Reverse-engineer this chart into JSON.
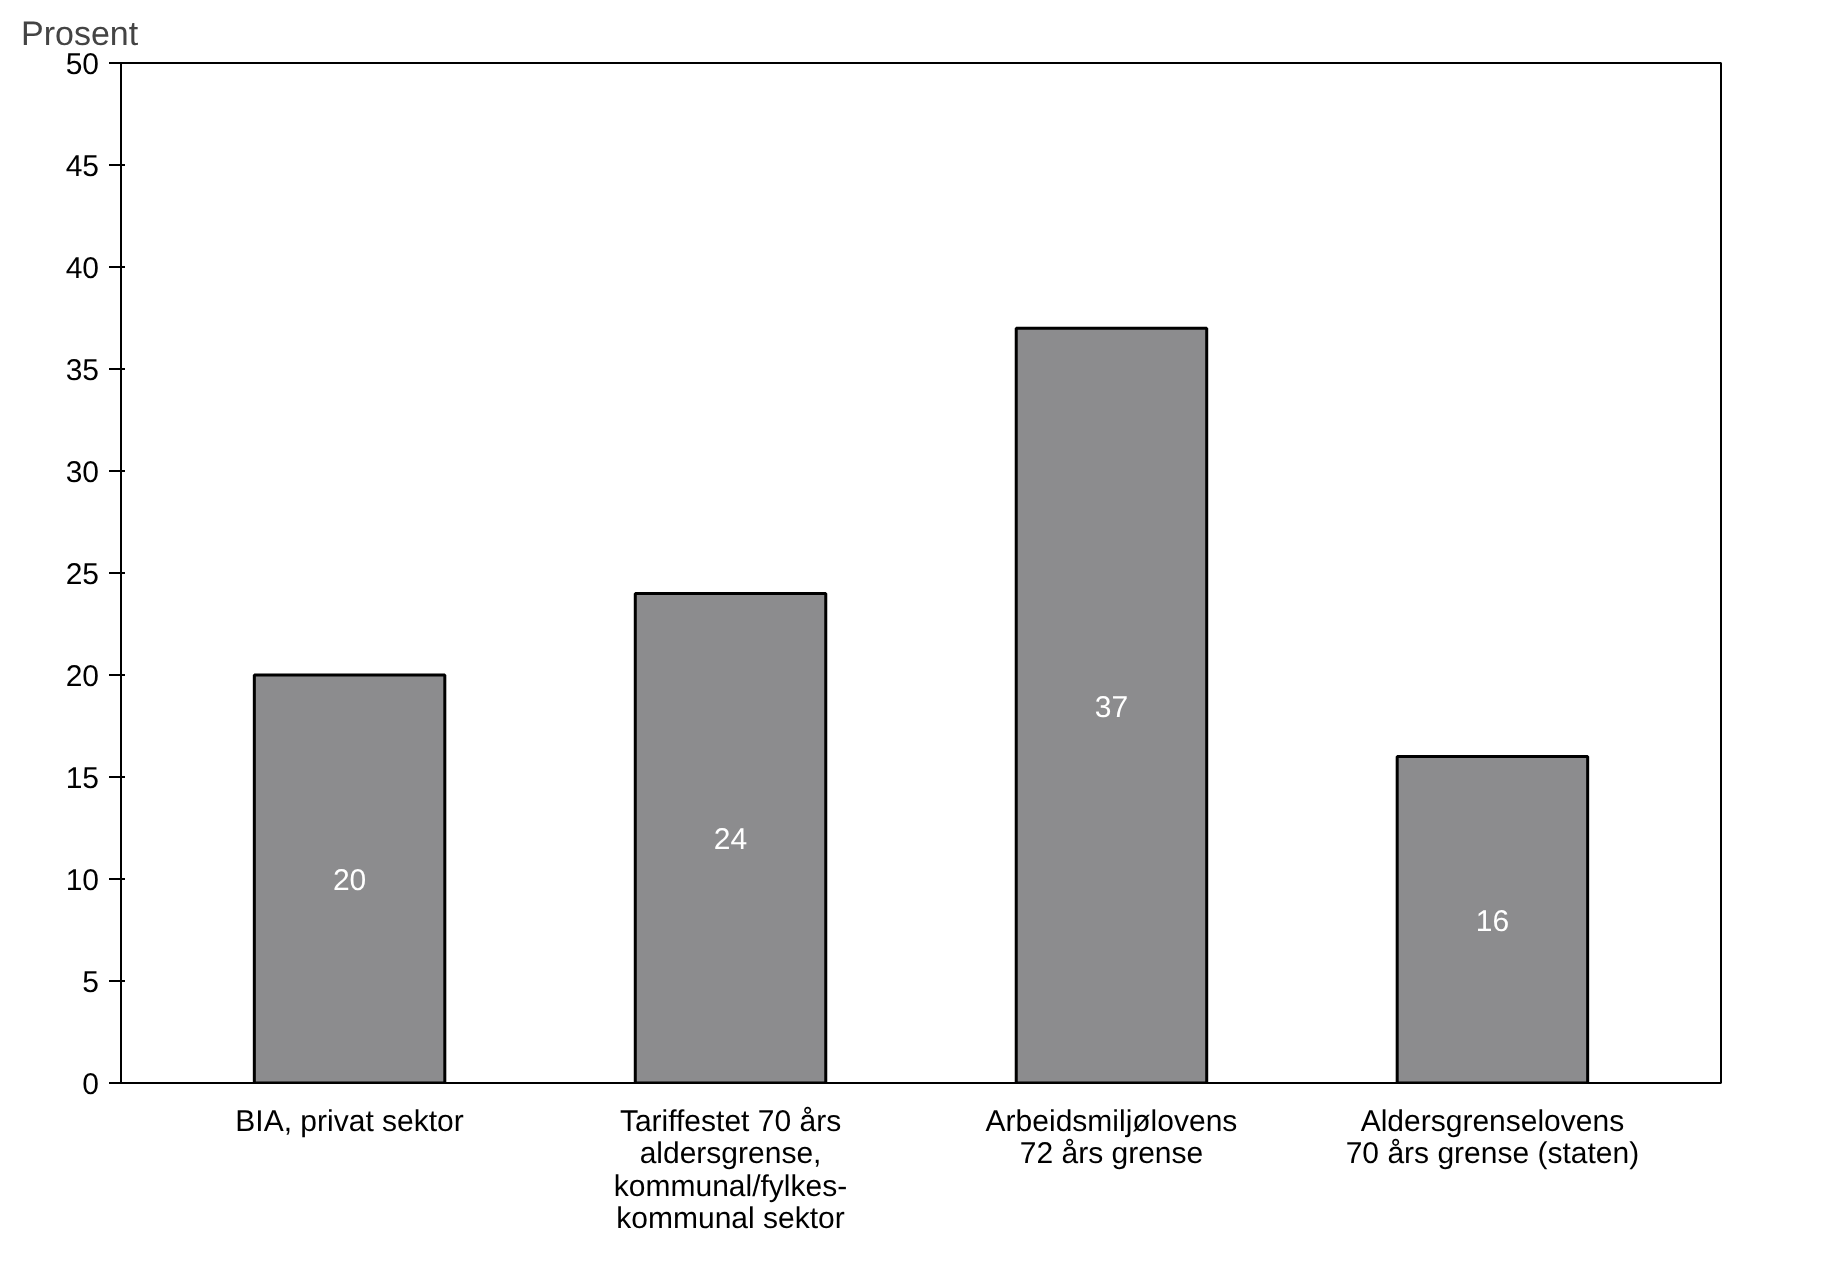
{
  "chart_data": {
    "type": "bar",
    "ylabel": "Prosent",
    "categories": [
      "BIA, privat sektor",
      "Tariffestet 70 års\naldersgrense,\nkommunal/fylkes-\nkommunal sektor",
      "Arbeidsmiljølovens\n72 års grense",
      "Aldersgrenselovens\n70 års grense (staten)"
    ],
    "values": [
      20,
      24,
      37,
      16
    ],
    "color": "#8c8c8e",
    "ylim": [
      0,
      50
    ],
    "yticks": [
      0,
      5,
      10,
      15,
      20,
      25,
      30,
      35,
      40,
      45,
      50
    ],
    "data_labels": true,
    "grid": false
  }
}
